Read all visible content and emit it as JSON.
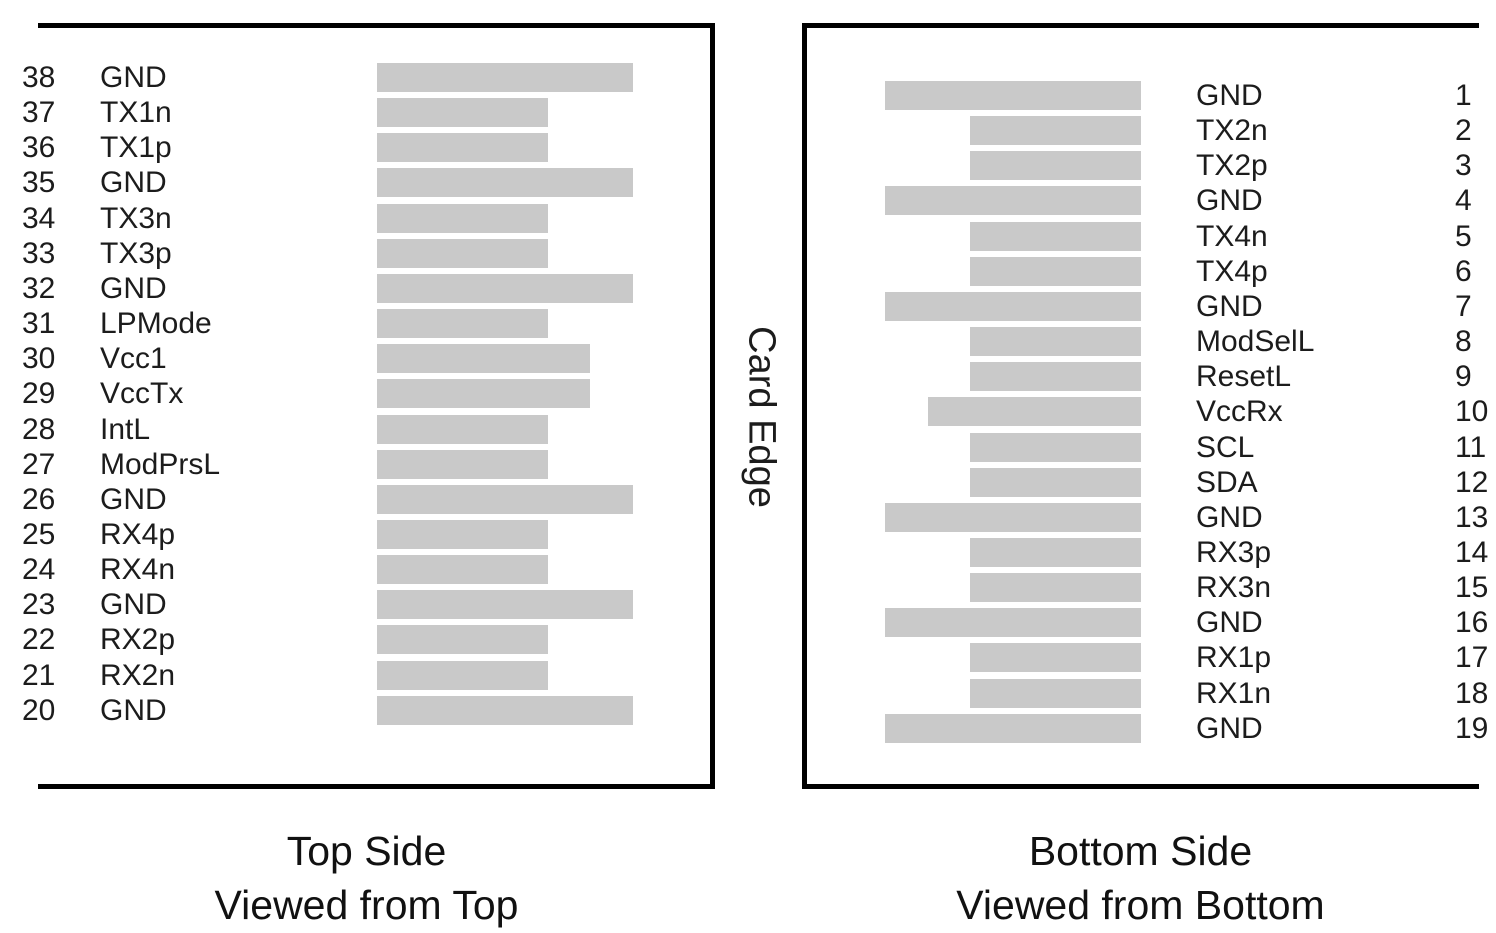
{
  "diagram": {
    "card_edge_label": "Card Edge",
    "colors": {
      "pad": "#c9c9c9",
      "border": "#000000",
      "background": "#ffffff",
      "text": "#1c1c1c"
    },
    "left_panel": {
      "caption_line1": "Top Side",
      "caption_line2": "Viewed from Top",
      "pins": [
        {
          "number": "38",
          "name": "GND",
          "type": "gnd"
        },
        {
          "number": "37",
          "name": "TX1n",
          "type": "signal"
        },
        {
          "number": "36",
          "name": "TX1p",
          "type": "signal"
        },
        {
          "number": "35",
          "name": "GND",
          "type": "gnd"
        },
        {
          "number": "34",
          "name": "TX3n",
          "type": "signal"
        },
        {
          "number": "33",
          "name": "TX3p",
          "type": "signal"
        },
        {
          "number": "32",
          "name": "GND",
          "type": "gnd"
        },
        {
          "number": "31",
          "name": "LPMode",
          "type": "signal"
        },
        {
          "number": "30",
          "name": "Vcc1",
          "type": "power"
        },
        {
          "number": "29",
          "name": "VccTx",
          "type": "power"
        },
        {
          "number": "28",
          "name": "IntL",
          "type": "signal"
        },
        {
          "number": "27",
          "name": "ModPrsL",
          "type": "signal"
        },
        {
          "number": "26",
          "name": "GND",
          "type": "gnd"
        },
        {
          "number": "25",
          "name": "RX4p",
          "type": "signal"
        },
        {
          "number": "24",
          "name": "RX4n",
          "type": "signal"
        },
        {
          "number": "23",
          "name": "GND",
          "type": "gnd"
        },
        {
          "number": "22",
          "name": "RX2p",
          "type": "signal"
        },
        {
          "number": "21",
          "name": "RX2n",
          "type": "signal"
        },
        {
          "number": "20",
          "name": "GND",
          "type": "gnd"
        }
      ]
    },
    "right_panel": {
      "caption_line1": "Bottom Side",
      "caption_line2": "Viewed from Bottom",
      "pins": [
        {
          "number": "1",
          "name": "GND",
          "type": "gnd"
        },
        {
          "number": "2",
          "name": "TX2n",
          "type": "signal"
        },
        {
          "number": "3",
          "name": "TX2p",
          "type": "signal"
        },
        {
          "number": "4",
          "name": "GND",
          "type": "gnd"
        },
        {
          "number": "5",
          "name": "TX4n",
          "type": "signal"
        },
        {
          "number": "6",
          "name": "TX4p",
          "type": "signal"
        },
        {
          "number": "7",
          "name": "GND",
          "type": "gnd"
        },
        {
          "number": "8",
          "name": "ModSelL",
          "type": "signal"
        },
        {
          "number": "9",
          "name": "ResetL",
          "type": "signal"
        },
        {
          "number": "10",
          "name": "VccRx",
          "type": "power"
        },
        {
          "number": "11",
          "name": "SCL",
          "type": "signal"
        },
        {
          "number": "12",
          "name": "SDA",
          "type": "signal"
        },
        {
          "number": "13",
          "name": "GND",
          "type": "gnd"
        },
        {
          "number": "14",
          "name": "RX3p",
          "type": "signal"
        },
        {
          "number": "15",
          "name": "RX3n",
          "type": "signal"
        },
        {
          "number": "16",
          "name": "GND",
          "type": "gnd"
        },
        {
          "number": "17",
          "name": "RX1p",
          "type": "signal"
        },
        {
          "number": "18",
          "name": "RX1n",
          "type": "signal"
        },
        {
          "number": "19",
          "name": "GND",
          "type": "gnd"
        }
      ]
    }
  }
}
